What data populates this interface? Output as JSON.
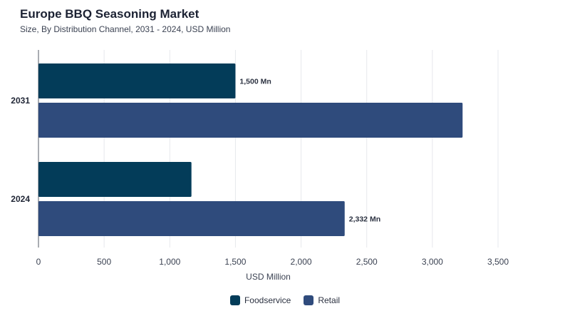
{
  "chart_data": {
    "type": "bar",
    "orientation": "horizontal",
    "title": "Europe BBQ Seasoning Market",
    "subtitle": "Size, By Distribution Channel, 2031 - 2024, USD Million",
    "categories": [
      "2031",
      "2024"
    ],
    "series": [
      {
        "name": "Foodservice",
        "values": [
          1500,
          1165
        ],
        "color": "#033c59",
        "labels": [
          "1,500 Mn",
          ""
        ]
      },
      {
        "name": "Retail",
        "values": [
          3230,
          2332
        ],
        "color": "#2f4b7c",
        "labels": [
          "",
          "2,332 Mn"
        ]
      }
    ],
    "xlabel": "USD Million",
    "ylabel": "",
    "xlim": [
      0,
      3500
    ],
    "xticks": [
      0,
      500,
      1000,
      1500,
      2000,
      2500,
      3000,
      3500
    ],
    "xtick_labels": [
      "0",
      "500",
      "1,000",
      "1,500",
      "2,000",
      "2,500",
      "3,000",
      "3,500"
    ],
    "grid": true,
    "legend_position": "bottom-center"
  }
}
